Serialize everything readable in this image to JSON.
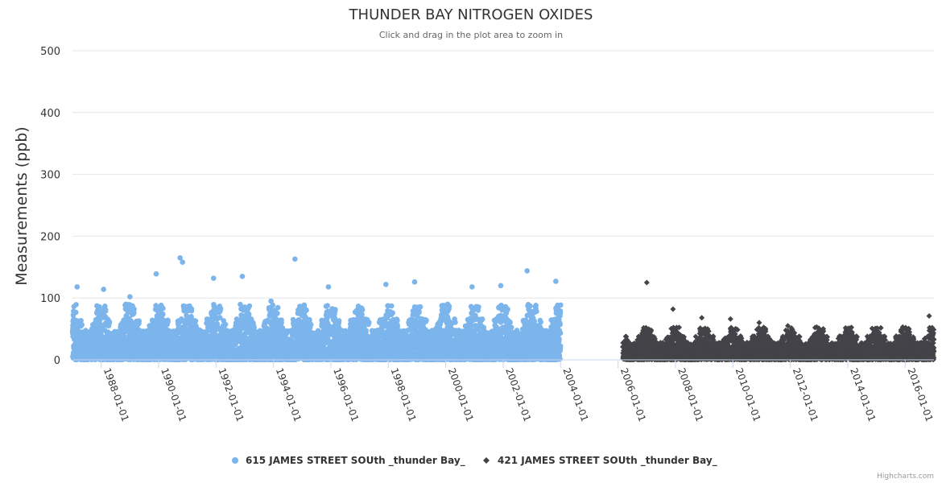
{
  "chart_data": {
    "type": "scatter",
    "title": "THUNDER BAY NITROGEN OXIDES",
    "subtitle": "Click and drag in the plot area to zoom in",
    "xlabel": "",
    "ylabel": "Measurements (ppb)",
    "ylim": [
      0,
      500
    ],
    "yticks": [
      0,
      100,
      200,
      300,
      400,
      500
    ],
    "xlim": [
      "1987-01-01",
      "2017-01-01"
    ],
    "xticks": [
      "1988-01-01",
      "1990-01-01",
      "1992-01-01",
      "1994-01-01",
      "1996-01-01",
      "1998-01-01",
      "2000-01-01",
      "2002-01-01",
      "2004-01-01",
      "2006-01-01",
      "2008-01-01",
      "2010-01-01",
      "2012-01-01",
      "2014-01-01",
      "2016-01-01"
    ],
    "grid": true,
    "legend_position": "bottom-center",
    "series": [
      {
        "name": "615 JAMES STREET SOUth _thunder Bay_",
        "color": "#7cb5ec",
        "marker": "circle",
        "date_range": [
          "1987-01-01",
          "2003-12-31"
        ],
        "typical_range": [
          0,
          60
        ],
        "peak_values": [
          {
            "x": "1987-03-01",
            "y": 118
          },
          {
            "x": "1988-02-01",
            "y": 114
          },
          {
            "x": "1989-01-01",
            "y": 102
          },
          {
            "x": "1989-12-01",
            "y": 139
          },
          {
            "x": "1990-10-01",
            "y": 165
          },
          {
            "x": "1990-11-01",
            "y": 158
          },
          {
            "x": "1991-12-01",
            "y": 132
          },
          {
            "x": "1992-12-01",
            "y": 135
          },
          {
            "x": "1993-12-01",
            "y": 95
          },
          {
            "x": "1994-10-01",
            "y": 163
          },
          {
            "x": "1995-12-01",
            "y": 118
          },
          {
            "x": "1997-12-01",
            "y": 122
          },
          {
            "x": "1998-12-01",
            "y": 126
          },
          {
            "x": "1999-12-01",
            "y": 88
          },
          {
            "x": "2000-12-01",
            "y": 118
          },
          {
            "x": "2001-12-01",
            "y": 120
          },
          {
            "x": "2002-11-01",
            "y": 144
          },
          {
            "x": "2003-11-01",
            "y": 127
          }
        ]
      },
      {
        "name": "421 JAMES STREET SOUth _thunder Bay_",
        "color": "#434348",
        "marker": "diamond",
        "date_range": [
          "2006-03-01",
          "2016-12-31"
        ],
        "typical_range": [
          0,
          35
        ],
        "peak_values": [
          {
            "x": "2007-01-01",
            "y": 125
          },
          {
            "x": "2007-12-01",
            "y": 82
          },
          {
            "x": "2008-12-01",
            "y": 68
          },
          {
            "x": "2009-12-01",
            "y": 66
          },
          {
            "x": "2010-12-01",
            "y": 60
          },
          {
            "x": "2011-12-01",
            "y": 55
          },
          {
            "x": "2012-12-01",
            "y": 53
          },
          {
            "x": "2013-12-01",
            "y": 45
          },
          {
            "x": "2014-12-01",
            "y": 48
          },
          {
            "x": "2015-12-01",
            "y": 53
          },
          {
            "x": "2016-11-01",
            "y": 71
          }
        ]
      }
    ]
  },
  "credits": "Highcharts.com"
}
